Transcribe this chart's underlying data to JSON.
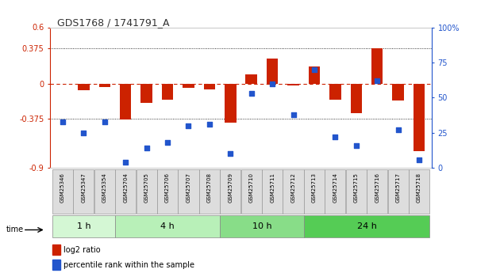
{
  "title": "GDS1768 / 1741791_A",
  "samples": [
    "GSM25346",
    "GSM25347",
    "GSM25354",
    "GSM25704",
    "GSM25705",
    "GSM25706",
    "GSM25707",
    "GSM25708",
    "GSM25709",
    "GSM25710",
    "GSM25711",
    "GSM25712",
    "GSM25713",
    "GSM25714",
    "GSM25715",
    "GSM25716",
    "GSM25717",
    "GSM25718"
  ],
  "log2_ratio": [
    0.0,
    -0.07,
    -0.04,
    -0.38,
    -0.21,
    -0.17,
    -0.05,
    -0.06,
    -0.42,
    0.1,
    0.27,
    -0.02,
    0.18,
    -0.17,
    -0.32,
    0.38,
    -0.18,
    -0.72
  ],
  "percentile": [
    33,
    25,
    33,
    4,
    14,
    18,
    30,
    31,
    10,
    53,
    60,
    38,
    70,
    22,
    16,
    62,
    27,
    6
  ],
  "groups": [
    {
      "label": "1 h",
      "start": 0,
      "end": 3,
      "color": "#d4f7d4"
    },
    {
      "label": "4 h",
      "start": 3,
      "end": 8,
      "color": "#b8f0b8"
    },
    {
      "label": "10 h",
      "start": 8,
      "end": 12,
      "color": "#88dd88"
    },
    {
      "label": "24 h",
      "start": 12,
      "end": 18,
      "color": "#55cc55"
    }
  ],
  "ylim_left": [
    -0.9,
    0.6
  ],
  "ylim_right": [
    0,
    100
  ],
  "yticks_left": [
    -0.9,
    -0.375,
    0.0,
    0.375,
    0.6
  ],
  "yticks_right": [
    0,
    25,
    50,
    75,
    100
  ],
  "ytick_labels_left": [
    "-0.9",
    "-0.375",
    "0",
    "0.375",
    "0.6"
  ],
  "ytick_labels_right": [
    "0",
    "25",
    "50",
    "75",
    "100%"
  ],
  "hlines": [
    0.375,
    -0.375
  ],
  "bar_color": "#cc2200",
  "dot_color": "#2255cc",
  "zero_line_color": "#cc2200",
  "background_color": "#ffffff"
}
